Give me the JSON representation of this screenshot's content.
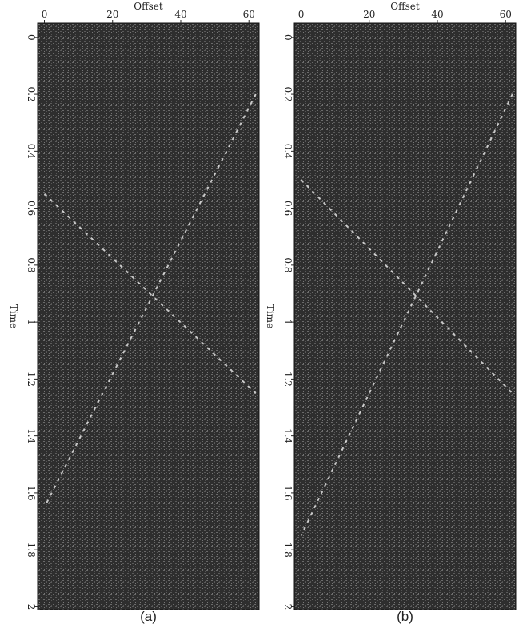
{
  "chart_data": [
    {
      "type": "image",
      "xlabel": "Offset",
      "ylabel": "Time",
      "panel_label": "(a)",
      "xlim": [
        -2,
        63
      ],
      "ylim": [
        -0.05,
        2.01
      ],
      "xticks": [
        0,
        20,
        40,
        60
      ],
      "yticks": [
        0,
        0.2,
        0.4,
        0.6,
        0.8,
        1,
        1.2,
        1.4,
        1.6,
        1.8,
        2
      ]
    },
    {
      "type": "image",
      "xlabel": "Offset",
      "ylabel": "Time",
      "panel_label": "(b)",
      "xlim": [
        -2,
        63
      ],
      "ylim": [
        -0.05,
        2.01
      ],
      "xticks": [
        0,
        20,
        40,
        60
      ],
      "yticks": [
        0,
        0.2,
        0.4,
        0.6,
        0.8,
        1,
        1.2,
        1.4,
        1.6,
        1.8,
        2
      ]
    }
  ]
}
